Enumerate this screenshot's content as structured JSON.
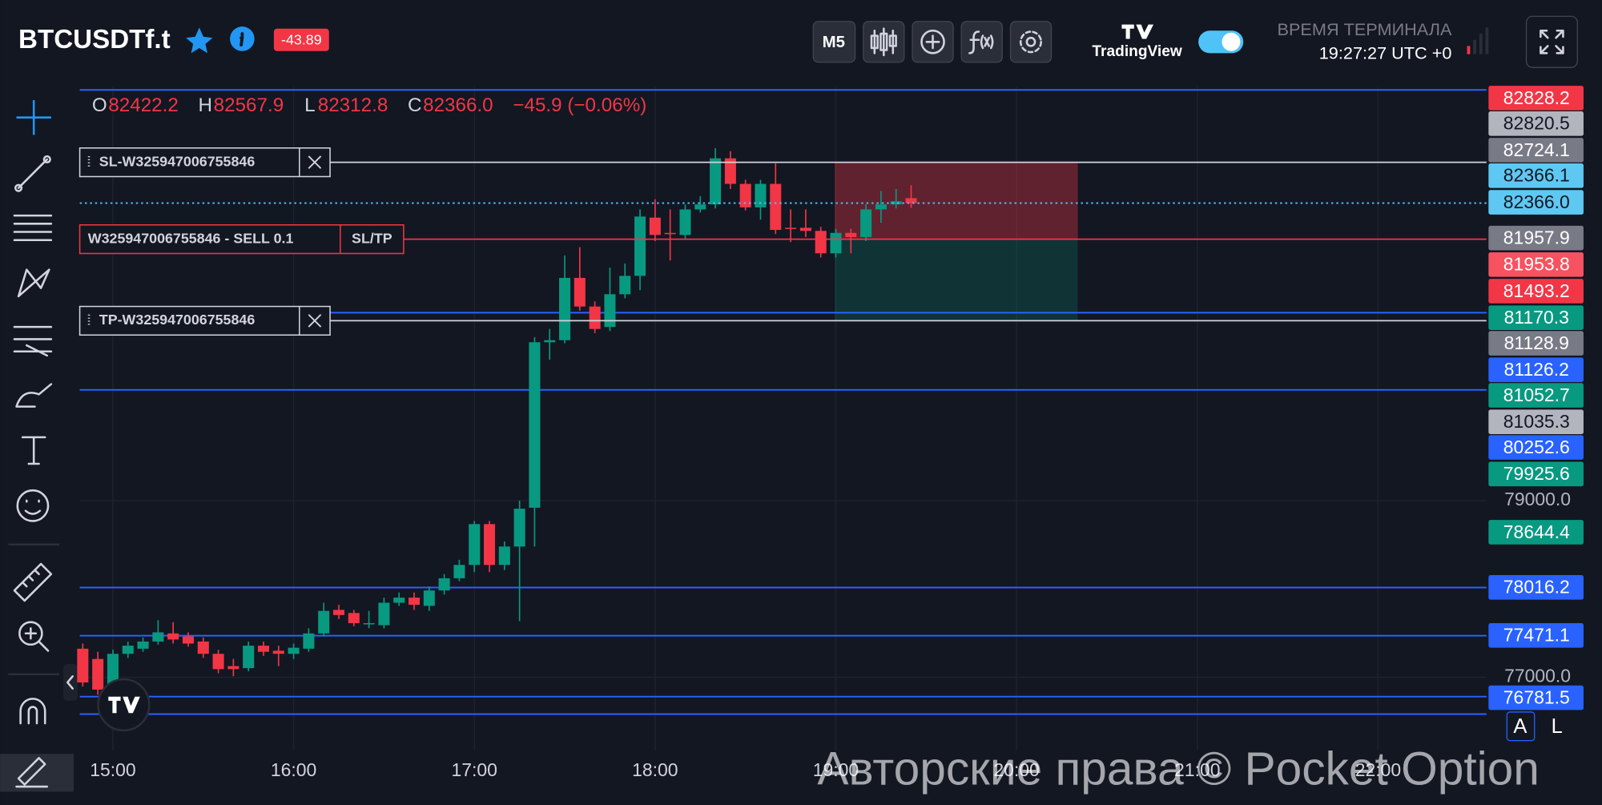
{
  "header": {
    "symbol": "BTCUSDTf.t",
    "change_badge": "-43.89",
    "timeframe": "M5",
    "brand": "TradingView",
    "terminal_time_label": "ВРЕМЯ ТЕРМИНАЛА",
    "terminal_time": "19:27:27 UTC +0"
  },
  "chart_data": {
    "type": "candlestick",
    "x": [
      "14:50",
      "14:55",
      "15:00",
      "15:05",
      "15:10",
      "15:15",
      "15:20",
      "15:25",
      "15:30",
      "15:35",
      "15:40",
      "15:45",
      "15:50",
      "15:55",
      "16:00",
      "16:05",
      "16:10",
      "16:15",
      "16:20",
      "16:25",
      "16:30",
      "16:35",
      "16:40",
      "16:45",
      "16:50",
      "16:55",
      "17:00",
      "17:05",
      "17:10",
      "17:15",
      "17:20",
      "17:25",
      "17:30",
      "17:35",
      "17:40",
      "17:45",
      "17:50",
      "17:55",
      "18:00",
      "18:05",
      "18:10",
      "18:15",
      "18:20",
      "18:25",
      "18:30",
      "18:35",
      "18:40",
      "18:45",
      "18:50",
      "18:55",
      "19:00",
      "19:05",
      "19:10",
      "19:15",
      "19:20",
      "19:25"
    ],
    "open": [
      77324,
      77208,
      76896,
      77266,
      77324,
      77405,
      77497,
      77463,
      77405,
      77266,
      77127,
      77104,
      77358,
      77301,
      77266,
      77324,
      77497,
      77763,
      77728,
      77601,
      77590,
      77844,
      77902,
      77809,
      77983,
      78121,
      78272,
      78734,
      78272,
      78480,
      78919,
      80792,
      80815,
      81520,
      81196,
      80965,
      81335,
      81543,
      82202,
      82029,
      82006,
      82295,
      82352,
      82873,
      82584,
      82318,
      82584,
      82087,
      82087,
      82052,
      81798,
      82029,
      81982,
      82295,
      82352,
      82422.2
    ],
    "high": [
      77382,
      77289,
      77312,
      77405,
      77451,
      77647,
      77624,
      77509,
      77451,
      77312,
      77208,
      77405,
      77405,
      77358,
      77382,
      77555,
      77844,
      77821,
      77763,
      77752,
      77902,
      77960,
      77960,
      78029,
      78168,
      78330,
      78769,
      78769,
      78538,
      79000,
      80850,
      80942,
      81774,
      81867,
      81254,
      81636,
      81682,
      82295,
      82410,
      82295,
      82352,
      82445,
      82988,
      82954,
      82630,
      82630,
      82815,
      82295,
      82295,
      82098,
      82075,
      82075,
      82352,
      82503,
      82526,
      82567.9
    ],
    "low": [
      76896,
      76804,
      76850,
      77220,
      77289,
      77370,
      77382,
      77347,
      77220,
      77046,
      77012,
      77069,
      77243,
      77127,
      77208,
      77289,
      77463,
      77659,
      77578,
      77555,
      77555,
      77809,
      77763,
      77752,
      77936,
      78087,
      78191,
      78191,
      78214,
      77636,
      78480,
      80595,
      80780,
      81150,
      80896,
      80919,
      81289,
      81381,
      81936,
      81717,
      81959,
      82260,
      82306,
      82526,
      82283,
      82179,
      82017,
      81925,
      81982,
      81751,
      81751,
      81798,
      81936,
      82144,
      82306,
      82312.8
    ],
    "close": [
      76942,
      76861,
      77266,
      77358,
      77405,
      77509,
      77428,
      77382,
      77266,
      77093,
      77093,
      77358,
      77289,
      77266,
      77335,
      77497,
      77752,
      77705,
      77613,
      77613,
      77844,
      77902,
      77821,
      77983,
      78121,
      78272,
      78734,
      78272,
      78480,
      78908,
      80792,
      80815,
      81520,
      81196,
      80942,
      81335,
      81543,
      82214,
      82006,
      82017,
      82295,
      82352,
      82873,
      82584,
      82318,
      82584,
      82063,
      82075,
      82052,
      81798,
      82029,
      81982,
      82295,
      82352,
      82387,
      82366.0
    ],
    "up_color": "#089981",
    "down_color": "#f23645",
    "xlim": [
      "14:49",
      "22:36"
    ],
    "xticks": [
      "15:00",
      "16:00",
      "17:00",
      "18:00",
      "19:00",
      "20:00",
      "21:00",
      "22:00"
    ],
    "ylim": [
      76168,
      83682
    ],
    "yticks": [
      {
        "value": 77000,
        "label": "77000.0"
      },
      {
        "value": 79000,
        "label": "79000.0"
      }
    ],
    "grid": true,
    "ohlc_readout": {
      "o_label": "O",
      "open": "82422.2",
      "h_label": "H",
      "high": "82567.9",
      "l_label": "L",
      "low": "82312.8",
      "c_label": "C",
      "close": "82366.0",
      "change": "−45.9 (−0.06%)"
    },
    "last_price_color": "#4fc3f7",
    "orders": [
      {
        "label": "SL-W325947006755846",
        "price": 82828.2,
        "color": "#d1d4dc"
      },
      {
        "label": "W325947006755846 - SELL 0.1",
        "button": "SL/TP",
        "price": 81957.9,
        "color": "#f23645"
      },
      {
        "label": "TP-W325947006755846",
        "price": 81035.3,
        "color": "#d1d4dc"
      }
    ],
    "levels": [
      83647,
      81126.2,
      80252.6,
      78016.2,
      77471.1,
      76781.5,
      76584
    ],
    "level_color": "#2962ff",
    "price_labels": [
      {
        "value": 82828.2,
        "color": "#f23645"
      },
      {
        "value": 82820.5,
        "color": "#b2b5be"
      },
      {
        "value": 82724.1,
        "color": "#787b86"
      },
      {
        "value": 82366.1,
        "color": "#5ec8f2"
      },
      {
        "value": 82366.0,
        "label": "82366.0",
        "color": "#5ec8f2"
      },
      {
        "value": 81957.9,
        "color": "#787b86"
      },
      {
        "value": 81953.8,
        "color": "#f7525f"
      },
      {
        "value": 81493.2,
        "color": "#f23645"
      },
      {
        "value": 81170.3,
        "color": "#089981"
      },
      {
        "value": 81128.9,
        "color": "#787b86"
      },
      {
        "value": 81126.2,
        "color": "#2962ff"
      },
      {
        "value": 81052.7,
        "color": "#089981"
      },
      {
        "value": 81035.3,
        "color": "#b2b5be"
      },
      {
        "value": 80252.6,
        "color": "#2962ff"
      },
      {
        "value": 79925.6,
        "color": "#089981"
      },
      {
        "value": 78644.4,
        "color": "#089981"
      },
      {
        "value": 78016.2,
        "color": "#2962ff"
      },
      {
        "value": 77471.1,
        "color": "#2962ff"
      },
      {
        "value": 76781.5,
        "color": "#2962ff"
      }
    ]
  },
  "scale_buttons": [
    "A",
    "L"
  ],
  "watermark": "Авторские права © Pocket Option"
}
